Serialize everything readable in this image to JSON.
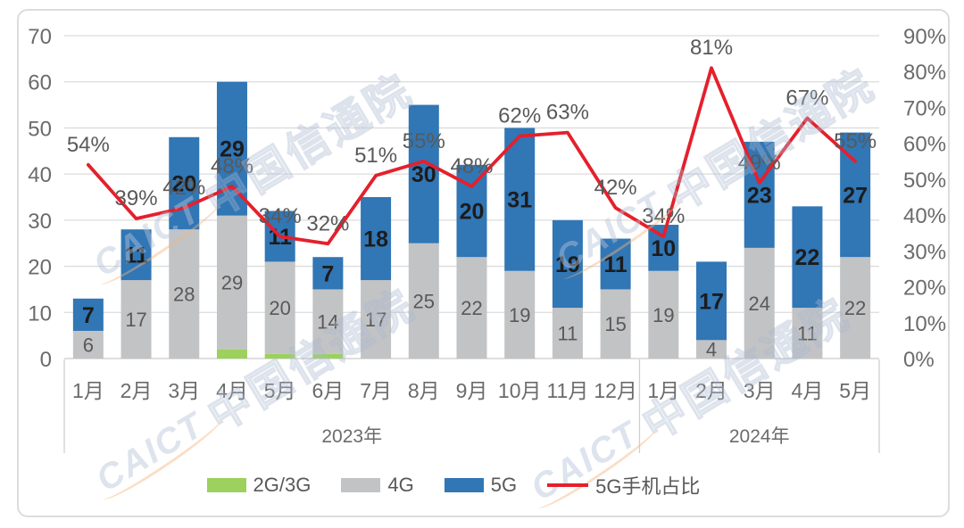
{
  "watermark": {
    "brand": "CAICT",
    "text": "中国信通院"
  },
  "legend": [
    {
      "key": "2g3g",
      "label": "2G/3G",
      "color": "#9bd15c",
      "type": "swatch"
    },
    {
      "key": "4g",
      "label": "4G",
      "color": "#c2c3c5",
      "type": "swatch"
    },
    {
      "key": "5g",
      "label": "5G",
      "color": "#3176b5",
      "type": "swatch"
    },
    {
      "key": "5g-share",
      "label": "5G手机占比",
      "color": "#e4202c",
      "type": "line"
    }
  ],
  "chart_data": {
    "type": "combo: stacked-bar + line",
    "title": "",
    "xlabel": "",
    "ylabel": "",
    "grid": true,
    "legend_position": "bottom",
    "categories": [
      "1月",
      "2月",
      "3月",
      "4月",
      "5月",
      "6月",
      "7月",
      "8月",
      "9月",
      "10月",
      "11月",
      "12月",
      "1月",
      "2月",
      "3月",
      "4月",
      "5月"
    ],
    "category_groups": [
      {
        "label": "2023年",
        "span": 12
      },
      {
        "label": "2024年",
        "span": 5
      }
    ],
    "series": [
      {
        "name": "2G/3G",
        "color": "#9bd15c",
        "labels_shown": false,
        "label_color": "#595959",
        "label_bold": false,
        "values": [
          0,
          0,
          0,
          2,
          1,
          1,
          0,
          0,
          0,
          0,
          0,
          0,
          0,
          0,
          0,
          0,
          0
        ]
      },
      {
        "name": "4G",
        "color": "#c2c3c5",
        "labels_shown": true,
        "label_color": "#595959",
        "label_bold": false,
        "values": [
          6,
          17,
          28,
          29,
          20,
          14,
          17,
          25,
          22,
          19,
          11,
          15,
          19,
          4,
          24,
          11,
          22
        ]
      },
      {
        "name": "5G",
        "color": "#3176b5",
        "labels_shown": true,
        "label_color": "#1c1c1c",
        "label_bold": true,
        "values": [
          7,
          11,
          20,
          29,
          11,
          7,
          18,
          30,
          20,
          31,
          19,
          11,
          10,
          17,
          23,
          22,
          27
        ]
      }
    ],
    "line_series": {
      "name": "5G手机占比",
      "color": "#e4202c",
      "unit": "%",
      "label_color": "#595959",
      "values": [
        54,
        39,
        42,
        48,
        34,
        32,
        51,
        55,
        48,
        62,
        63,
        42,
        34,
        81,
        49,
        67,
        55
      ]
    },
    "left_axis": {
      "min": 0,
      "max": 70,
      "ticks": [
        "70",
        "60",
        "50",
        "40",
        "30",
        "20",
        "10",
        "0"
      ]
    },
    "right_axis": {
      "min": 0,
      "max": 90,
      "ticks": [
        "90%",
        "80%",
        "70%",
        "60%",
        "50%",
        "40%",
        "30%",
        "20%",
        "10%",
        "0%"
      ]
    }
  },
  "colors": {
    "grid": "#dcdcdc",
    "axis_line": "#c9c9c9",
    "separator": "#d0d0d0",
    "tick_text": "#6b6b6b",
    "card_border": "#dcdcdc"
  }
}
